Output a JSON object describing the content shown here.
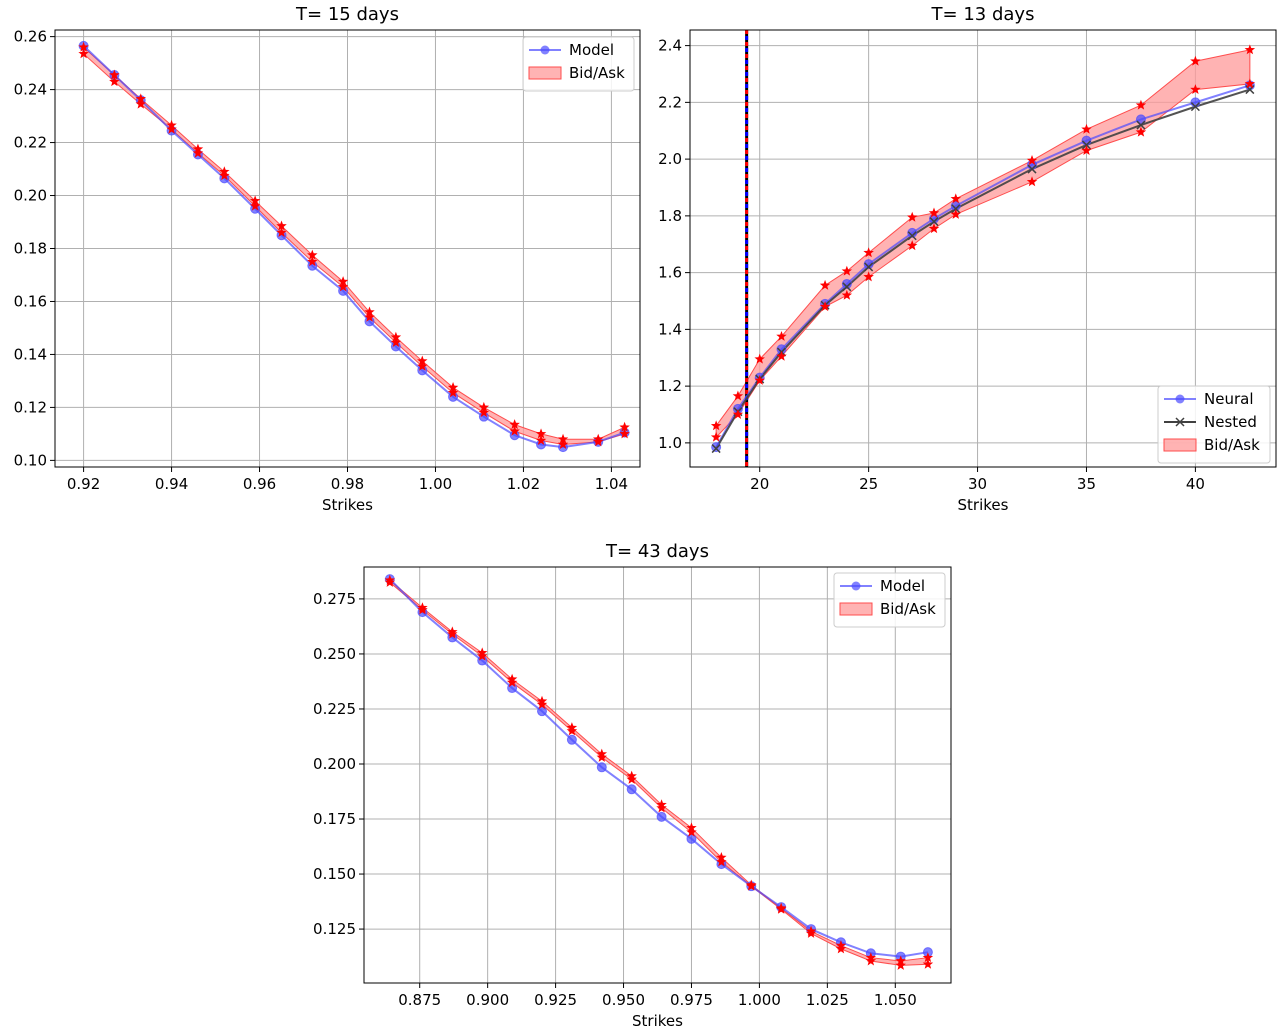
{
  "colors": {
    "model": "#4c4cff",
    "nested": "#404040",
    "bidask_fill": "#ff9a9a",
    "bidask_edge": "#ff4d4d",
    "star": "#ff0000",
    "grid": "#b0b0b0",
    "vline_black": "#000000",
    "vline_blue": "#0000ff",
    "vline_red": "#ff0000"
  },
  "chart_data": [
    {
      "type": "line",
      "title": "T= 15 days",
      "xlabel": "Strikes",
      "ylabel": "",
      "xlim": [
        0.9135,
        1.0465
      ],
      "ylim": [
        0.0975,
        0.2625
      ],
      "xticks": [
        0.92,
        0.94,
        0.96,
        0.98,
        1.0,
        1.02,
        1.04
      ],
      "xtick_labels": [
        "0.92",
        "0.94",
        "0.96",
        "0.98",
        "1.00",
        "1.02",
        "1.04"
      ],
      "yticks": [
        0.1,
        0.12,
        0.14,
        0.16,
        0.18,
        0.2,
        0.22,
        0.24,
        0.26
      ],
      "ytick_labels": [
        "0.10",
        "0.12",
        "0.14",
        "0.16",
        "0.18",
        "0.20",
        "0.22",
        "0.24",
        "0.26"
      ],
      "grid": true,
      "legend": "top-right",
      "x": [
        0.92,
        0.927,
        0.933,
        0.94,
        0.946,
        0.952,
        0.959,
        0.965,
        0.972,
        0.979,
        0.985,
        0.991,
        0.997,
        1.004,
        1.011,
        1.018,
        1.024,
        1.029,
        1.037,
        1.043
      ],
      "series": [
        {
          "name": "Model",
          "kind": "model",
          "values": [
            0.2565,
            0.2455,
            0.236,
            0.2245,
            0.2155,
            0.2065,
            0.195,
            0.185,
            0.1735,
            0.164,
            0.1525,
            0.143,
            0.134,
            0.124,
            0.1165,
            0.1095,
            0.106,
            0.105,
            0.107,
            0.1105
          ]
        },
        {
          "name": "Bid/Ask",
          "kind": "bidask",
          "low": [
            0.2535,
            0.243,
            0.2345,
            0.225,
            0.216,
            0.2075,
            0.196,
            0.186,
            0.175,
            0.1655,
            0.154,
            0.1445,
            0.1355,
            0.1255,
            0.118,
            0.111,
            0.1075,
            0.106,
            0.107,
            0.11
          ],
          "high": [
            0.256,
            0.2455,
            0.2365,
            0.2265,
            0.2175,
            0.209,
            0.198,
            0.1885,
            0.1775,
            0.1675,
            0.156,
            0.1465,
            0.1375,
            0.1275,
            0.12,
            0.1135,
            0.11,
            0.108,
            0.108,
            0.1125
          ]
        }
      ]
    },
    {
      "type": "line",
      "title": "T= 13 days",
      "xlabel": "Strikes",
      "ylabel": "",
      "xlim": [
        16.8,
        43.7
      ],
      "ylim": [
        0.915,
        2.455
      ],
      "xticks": [
        20,
        25,
        30,
        35,
        40
      ],
      "xtick_labels": [
        "20",
        "25",
        "30",
        "35",
        "40"
      ],
      "yticks": [
        1.0,
        1.2,
        1.4,
        1.6,
        1.8,
        2.0,
        2.2,
        2.4
      ],
      "ytick_labels": [
        "1.0",
        "1.2",
        "1.4",
        "1.6",
        "1.8",
        "2.0",
        "2.2",
        "2.4"
      ],
      "grid": true,
      "legend": "bottom-right",
      "vline_x": 19.4,
      "x": [
        18,
        19,
        20,
        21,
        23,
        24,
        25,
        27,
        28,
        29,
        32.5,
        35,
        37.5,
        40,
        42.5
      ],
      "series": [
        {
          "name": "Neural",
          "kind": "model",
          "values": [
            0.985,
            1.12,
            1.23,
            1.33,
            1.49,
            1.56,
            1.63,
            1.74,
            1.79,
            1.835,
            1.98,
            2.065,
            2.14,
            2.2,
            2.26
          ]
        },
        {
          "name": "Nested",
          "kind": "nested",
          "values": [
            0.98,
            1.11,
            1.225,
            1.32,
            1.485,
            1.55,
            1.62,
            1.73,
            1.78,
            1.825,
            1.965,
            2.05,
            2.12,
            2.185,
            2.245
          ]
        },
        {
          "name": "Bid/Ask",
          "kind": "bidask",
          "low": [
            1.02,
            1.1,
            1.22,
            1.305,
            1.48,
            1.52,
            1.585,
            1.695,
            1.755,
            1.805,
            1.92,
            2.03,
            2.095,
            2.245,
            2.265
          ],
          "high": [
            1.06,
            1.165,
            1.295,
            1.375,
            1.555,
            1.605,
            1.67,
            1.795,
            1.81,
            1.86,
            1.995,
            2.105,
            2.19,
            2.345,
            2.385
          ]
        }
      ]
    },
    {
      "type": "line",
      "title": "T= 43 days",
      "xlabel": "Strikes",
      "ylabel": "",
      "xlim": [
        0.8545,
        1.0705
      ],
      "ylim": [
        0.1005,
        0.2895
      ],
      "xticks": [
        0.875,
        0.9,
        0.925,
        0.95,
        0.975,
        1.0,
        1.025,
        1.05
      ],
      "xtick_labels": [
        "0.875",
        "0.900",
        "0.925",
        "0.950",
        "0.975",
        "1.000",
        "1.025",
        "1.050"
      ],
      "yticks": [
        0.125,
        0.15,
        0.175,
        0.2,
        0.225,
        0.25,
        0.275
      ],
      "ytick_labels": [
        "0.125",
        "0.150",
        "0.175",
        "0.200",
        "0.225",
        "0.250",
        "0.275"
      ],
      "grid": true,
      "legend": "top-right",
      "x": [
        0.864,
        0.876,
        0.887,
        0.898,
        0.909,
        0.92,
        0.931,
        0.942,
        0.953,
        0.964,
        0.975,
        0.986,
        0.997,
        1.008,
        1.019,
        1.03,
        1.041,
        1.052,
        1.062
      ],
      "series": [
        {
          "name": "Model",
          "kind": "model",
          "values": [
            0.284,
            0.269,
            0.2575,
            0.247,
            0.2345,
            0.224,
            0.211,
            0.1985,
            0.1885,
            0.176,
            0.166,
            0.1545,
            0.1445,
            0.135,
            0.125,
            0.119,
            0.114,
            0.1125,
            0.1145
          ]
        },
        {
          "name": "Bid/Ask",
          "kind": "bidask",
          "low": [
            0.2825,
            0.27,
            0.259,
            0.249,
            0.237,
            0.227,
            0.215,
            0.203,
            0.193,
            0.18,
            0.169,
            0.1555,
            0.1445,
            0.134,
            0.123,
            0.116,
            0.1105,
            0.1085,
            0.109
          ],
          "high": [
            0.2835,
            0.271,
            0.26,
            0.2505,
            0.2385,
            0.2285,
            0.2165,
            0.2045,
            0.1945,
            0.1815,
            0.171,
            0.1575,
            0.145,
            0.1345,
            0.124,
            0.1175,
            0.112,
            0.1105,
            0.112
          ]
        }
      ]
    }
  ]
}
